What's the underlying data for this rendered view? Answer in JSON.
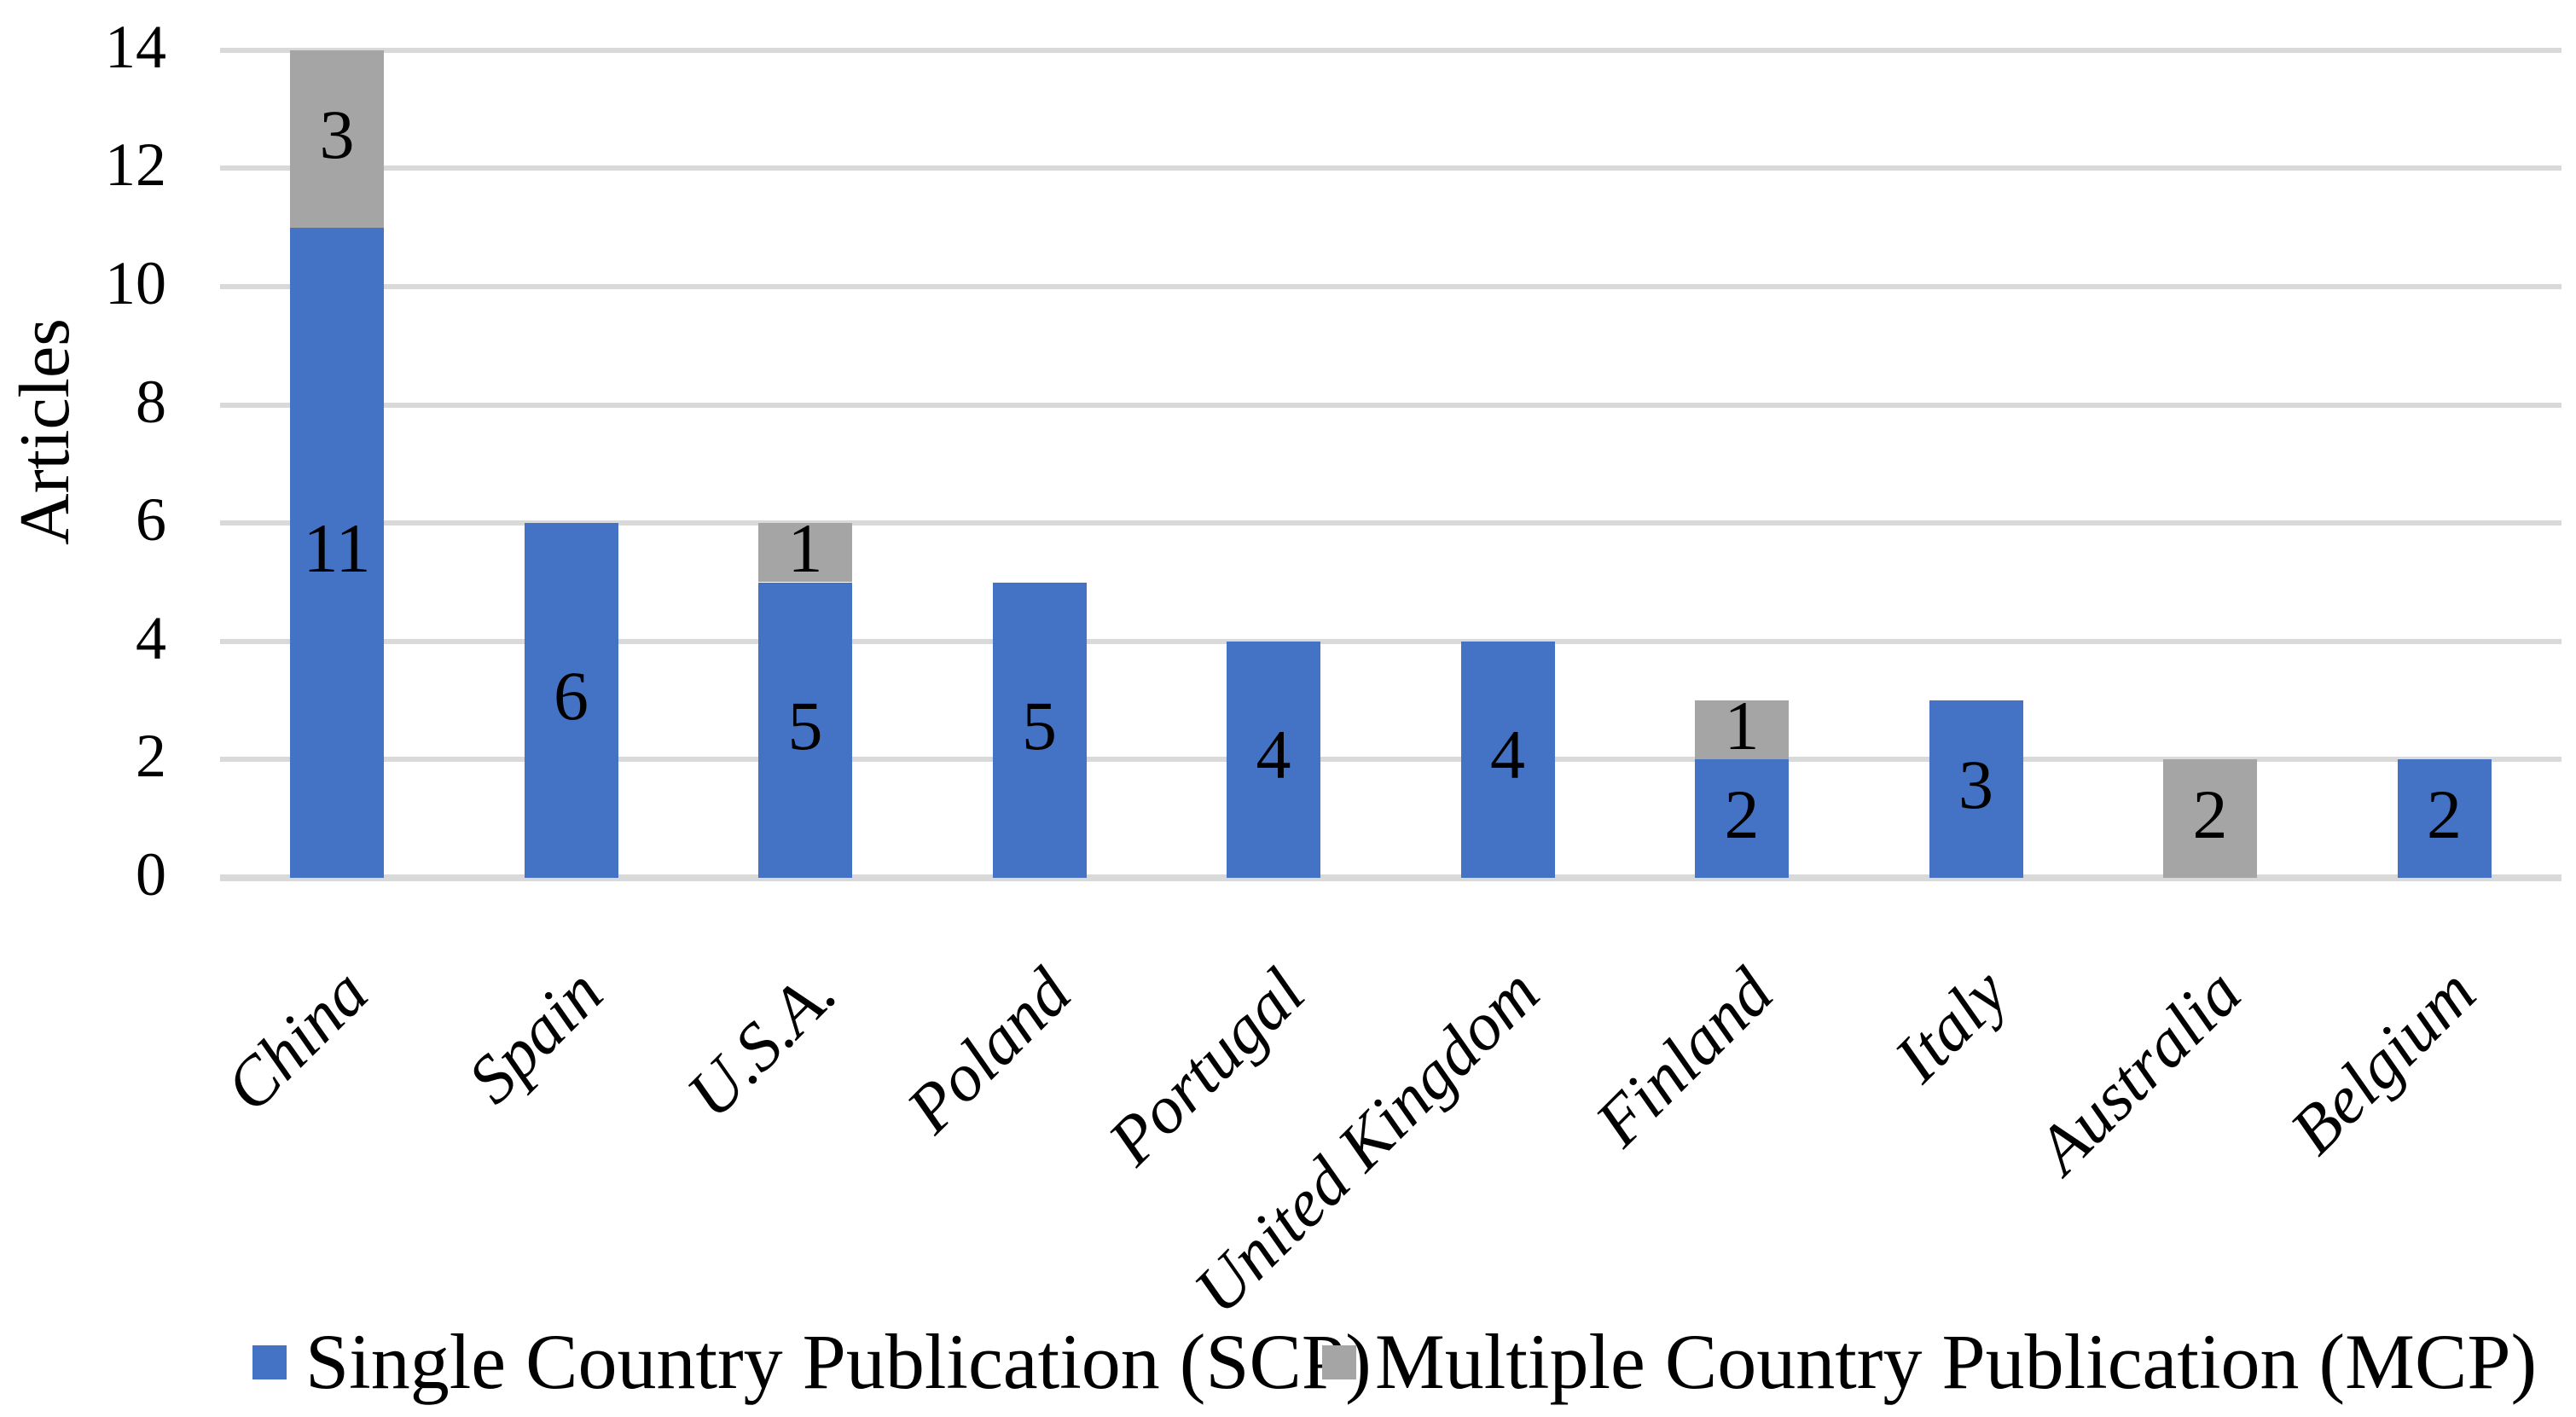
{
  "chart_data": {
    "type": "bar",
    "stacked": true,
    "title": "",
    "xlabel": "",
    "ylabel": "Articles",
    "categories": [
      "China",
      "Spain",
      "U.S.A.",
      "Poland",
      "Portugal",
      "United Kingdom",
      "Finland",
      "Italy",
      "Australia",
      "Belgium"
    ],
    "series": [
      {
        "name": "Single Country Publication (SCP)",
        "color": "#4472C4",
        "values": [
          11,
          6,
          5,
          5,
          4,
          4,
          2,
          3,
          0,
          2
        ]
      },
      {
        "name": "Multiple Country Publication (MCP)",
        "color": "#A5A5A5",
        "values": [
          3,
          0,
          1,
          0,
          0,
          0,
          1,
          0,
          2,
          0
        ]
      }
    ],
    "totals": [
      14,
      6,
      6,
      5,
      4,
      4,
      3,
      3,
      2,
      2
    ],
    "ylim": [
      0,
      14
    ],
    "yticks": [
      0,
      2,
      4,
      6,
      8,
      10,
      12,
      14
    ],
    "grid": true,
    "gridline_color": "#D9D9D9",
    "bar_labels_shown": true,
    "bar_label_color": "#000000",
    "legend_position": "bottom",
    "x_tick_rotation_deg": 45
  }
}
